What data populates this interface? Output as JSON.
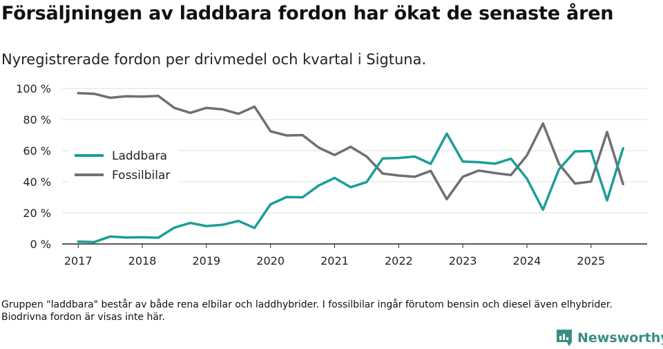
{
  "title": "Försäljningen av laddbara fordon har ökat de senaste åren",
  "subtitle": "Nyregistrerade fordon per drivmedel och kvartal i Sigtuna.",
  "footnote": "Gruppen \"laddbara\" består av både rena elbilar och laddhybrider. I fossilbilar ingår förutom bensin och diesel även elhybrider. Biodrivna fordon är visas inte här.",
  "brand": {
    "name": "Newsworthy",
    "icon": "newsworthy-logo-icon",
    "color": "#3a8c86"
  },
  "chart_data": {
    "type": "line",
    "title": "Nyregistrerade fordon per drivmedel och kvartal i Sigtuna.",
    "xlabel": "",
    "ylabel": "",
    "ylim": [
      0,
      100
    ],
    "xlim": [
      2016.75,
      2025.875
    ],
    "yticks": [
      0,
      20,
      40,
      60,
      80,
      100
    ],
    "ytick_labels": [
      "0 %",
      "20 %",
      "40 %",
      "60 %",
      "80 %",
      "100 %"
    ],
    "xticks": [
      2017,
      2018,
      2019,
      2020,
      2021,
      2022,
      2023,
      2024,
      2025
    ],
    "xtick_labels": [
      "2017",
      "2018",
      "2019",
      "2020",
      "2021",
      "2022",
      "2023",
      "2024",
      "2025"
    ],
    "grid": true,
    "legend_position": "left",
    "x": [
      2017.0,
      2017.25,
      2017.5,
      2017.75,
      2018.0,
      2018.25,
      2018.5,
      2018.75,
      2019.0,
      2019.25,
      2019.5,
      2019.75,
      2020.0,
      2020.25,
      2020.5,
      2020.75,
      2021.0,
      2021.25,
      2021.5,
      2021.75,
      2022.0,
      2022.25,
      2022.5,
      2022.75,
      2023.0,
      2023.25,
      2023.5,
      2023.75,
      2024.0,
      2024.25,
      2024.5,
      2024.75,
      2025.0,
      2025.25,
      2025.5
    ],
    "series": [
      {
        "name": "Laddbara",
        "color": "#1a9e96",
        "values": [
          1.5,
          1.2,
          4.8,
          4.2,
          4.3,
          4.0,
          10.5,
          13.5,
          11.5,
          12.3,
          14.8,
          10.3,
          25.5,
          30.2,
          30.0,
          37.5,
          42.5,
          36.5,
          39.8,
          55.0,
          55.3,
          56.2,
          51.5,
          71.0,
          53.0,
          52.6,
          51.6,
          54.8,
          42.0,
          22.0,
          48.0,
          59.5,
          59.8,
          28.0,
          61.5
        ]
      },
      {
        "name": "Fossilbilar",
        "color": "#6e6e73",
        "values": [
          97.0,
          96.6,
          94.0,
          95.0,
          94.8,
          95.2,
          87.5,
          84.3,
          87.5,
          86.6,
          83.7,
          88.3,
          72.5,
          69.8,
          70.0,
          62.0,
          57.2,
          62.5,
          56.2,
          45.3,
          44.0,
          43.2,
          47.0,
          28.8,
          43.2,
          47.2,
          45.6,
          44.3,
          57.0,
          77.5,
          51.5,
          38.8,
          40.2,
          72.0,
          38.5
        ]
      }
    ]
  }
}
